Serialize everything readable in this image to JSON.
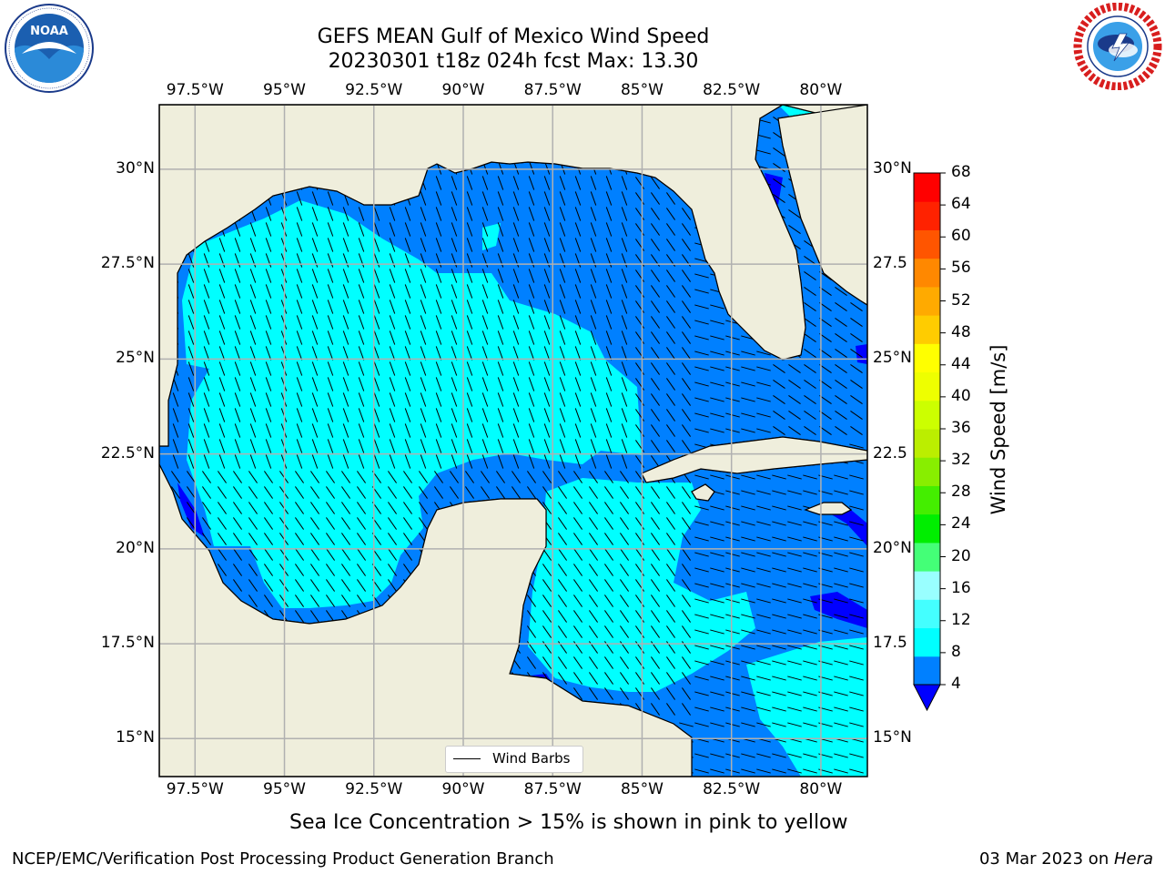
{
  "title": {
    "line1": "GEFS MEAN Gulf of Mexico Wind Speed",
    "line2": "20230301 t18z 024h fcst   Max: 13.30"
  },
  "logos": {
    "left": {
      "icon": "noaa-logo",
      "text": "NOAA",
      "ring_text": "NATIONAL OCEANIC AND ATMOSPHERIC ADMINISTRATION · U.S. DEPARTMENT OF COMMERCE"
    },
    "right": {
      "icon": "nws-logo",
      "ring_text": "NATIONAL WEATHER SERVICE"
    }
  },
  "map": {
    "lon_range": [
      -98.5,
      -78.7
    ],
    "lat_range": [
      14.0,
      31.7
    ],
    "lon_ticks": [
      "97.5°W",
      "95°W",
      "92.5°W",
      "90°W",
      "87.5°W",
      "85°W",
      "82.5°W",
      "80°W"
    ],
    "lat_ticks_left": [
      "30°N",
      "27.5°N",
      "25°N",
      "22.5°N",
      "20°N",
      "17.5°N",
      "15°N"
    ],
    "lat_ticks_right": [
      "30°N",
      "27.5",
      "25°N",
      "22.5",
      "20°N",
      "17.5",
      "15°N"
    ],
    "legend_label": "Wind Barbs",
    "colors": {
      "land": "#efeedc",
      "c4_8": "#0080ff",
      "c8_12": "#00ffff",
      "c12_16": "#44ffff",
      "c0_4": "#0000ff",
      "grid": "#b0b0b0"
    }
  },
  "colorbar": {
    "label": "Wind Speed [m/s]",
    "ticks": [
      "4",
      "8",
      "12",
      "16",
      "20",
      "24",
      "28",
      "32",
      "36",
      "40",
      "44",
      "48",
      "52",
      "56",
      "60",
      "64",
      "68"
    ],
    "colors": [
      "#0080ff",
      "#00ffff",
      "#44ffff",
      "#99ffff",
      "#44ff77",
      "#00ee00",
      "#44ee00",
      "#88ee00",
      "#bbee00",
      "#ccff00",
      "#eeff00",
      "#ffff00",
      "#ffcc00",
      "#ffaa00",
      "#ff8800",
      "#ff5500",
      "#ff2200",
      "#ff0000"
    ],
    "under_color": "#0000ff"
  },
  "subtitle": "Sea Ice Concentration > 15% is shown in pink to yellow",
  "footer": {
    "left": "NCEP/EMC/Verification Post Processing Product Generation Branch",
    "date": "03 Mar 2023 on ",
    "machine": "Hera"
  }
}
